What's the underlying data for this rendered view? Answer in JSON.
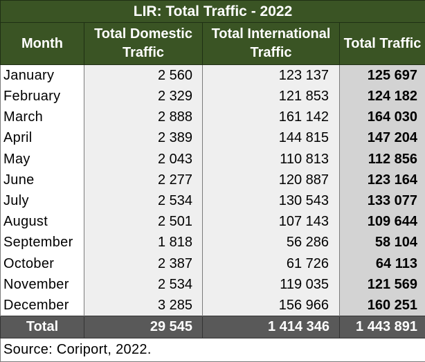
{
  "table": {
    "title": "LIR: Total Traffic - 2022",
    "headers": {
      "month": "Month",
      "domestic_line1": "Total Domestic",
      "domestic_line2": "Traffic",
      "international_line1": "Total International",
      "international_line2": "Traffic",
      "total": "Total Traffic"
    },
    "rows": [
      {
        "month": "January",
        "domestic": "2 560",
        "international": "123 137",
        "total": "125 697"
      },
      {
        "month": "February",
        "domestic": "2 329",
        "international": "121 853",
        "total": "124 182"
      },
      {
        "month": "March",
        "domestic": "2 888",
        "international": "161 142",
        "total": "164 030"
      },
      {
        "month": "April",
        "domestic": "2 389",
        "international": "144 815",
        "total": "147 204"
      },
      {
        "month": "May",
        "domestic": "2 043",
        "international": "110 813",
        "total": "112 856"
      },
      {
        "month": "June",
        "domestic": "2 277",
        "international": "120 887",
        "total": "123 164"
      },
      {
        "month": "July",
        "domestic": "2 534",
        "international": "130 543",
        "total": "133 077"
      },
      {
        "month": "August",
        "domestic": "2 501",
        "international": "107 143",
        "total": "109 644"
      },
      {
        "month": "September",
        "domestic": "1 818",
        "international": "56 286",
        "total": "58 104"
      },
      {
        "month": "October",
        "domestic": "2 387",
        "international": "61 726",
        "total": "64 113"
      },
      {
        "month": "November",
        "domestic": "2 534",
        "international": "119 035",
        "total": "121 569"
      },
      {
        "month": "December",
        "domestic": "3 285",
        "international": "156 966",
        "total": "160 251"
      }
    ],
    "totals": {
      "label": "Total",
      "domestic": "29 545",
      "international": "1 414 346",
      "total": "1 443 891"
    },
    "source": "Source: Coriport, 2022."
  },
  "colors": {
    "header_green": "#3a5424",
    "total_row_gray": "#595959",
    "data_cell_gray": "#efefef",
    "total_column_gray": "#d3d3d3"
  }
}
